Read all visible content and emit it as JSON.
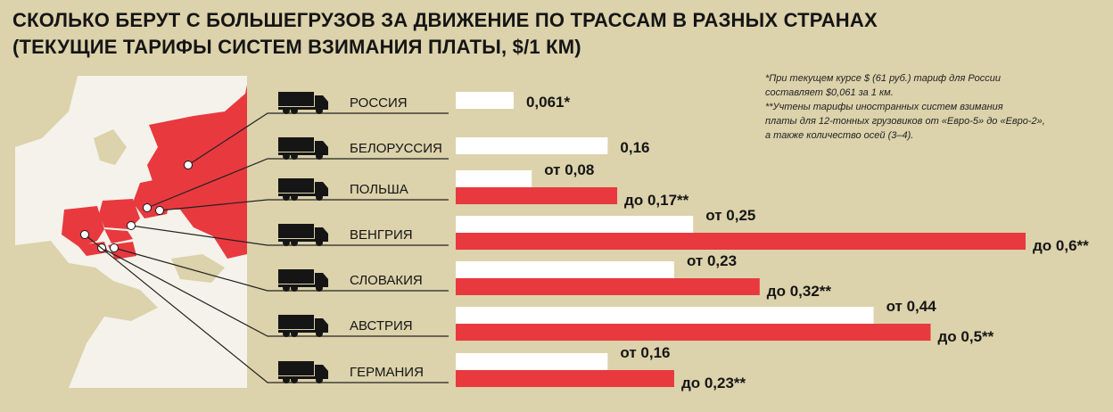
{
  "title_line1": "СКОЛЬКО БЕРУТ С БОЛЬШЕГРУЗОВ ЗА ДВИЖЕНИЕ ПО ТРАССАМ В РАЗНЫХ СТРАНАХ",
  "title_line2": "(ТЕКУЩИЕ ТАРИФЫ СИСТЕМ ВЗИМАНИЯ ПЛАТЫ,  $/1 КМ)",
  "notes": [
    "*При текущем курсе $ (61 руб.) тариф для России",
    "составляет $0,061 за 1 км.",
    "**Учтены тарифы иностранных систем взимания",
    "платы для 12-тонных грузовиков от «Евро-5» до «Евро-2»,",
    "а также количество осей (3–4)."
  ],
  "colors": {
    "background": "#dcd2ab",
    "bar_min": "#ffffff",
    "bar_max": "#e8393f",
    "map_land": "#f4f2ea",
    "map_highlight": "#e8393f",
    "text": "#151515"
  },
  "icons": {
    "truck": "truck-icon"
  },
  "chart_data": {
    "type": "bar",
    "orientation": "horizontal",
    "unit": "$/1 км",
    "categories": [
      "РОССИЯ",
      "БЕЛОРУССИЯ",
      "ПОЛЬША",
      "ВЕНГРИЯ",
      "СЛОВАКИЯ",
      "АВСТРИЯ",
      "ГЕРМАНИЯ"
    ],
    "series": [
      {
        "values": [
          0.061,
          0.16,
          0.08,
          0.25,
          0.23,
          0.44,
          0.16
        ],
        "labels": [
          "0,061*",
          "0,16",
          "от 0,08",
          "от 0,25",
          "от 0,23",
          "от 0,44",
          "от 0,16"
        ]
      },
      {
        "values": [
          null,
          null,
          0.17,
          0.6,
          0.32,
          0.5,
          0.23
        ],
        "labels": [
          "",
          "",
          "до 0,17**",
          "до 0,6**",
          "до 0,32**",
          "до 0,5**",
          "до 0,23**"
        ]
      }
    ],
    "xlim": [
      0,
      0.6
    ]
  }
}
